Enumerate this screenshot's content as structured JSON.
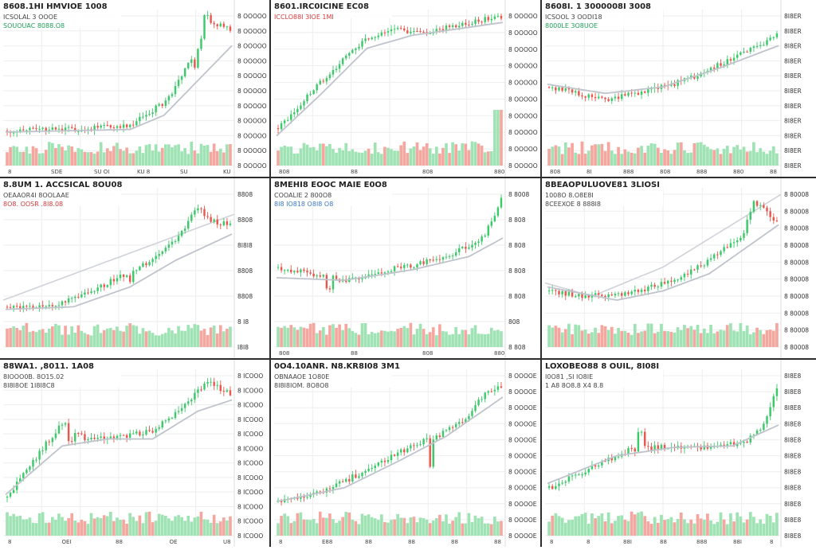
{
  "layout_grid": "3x3",
  "colors": {
    "up": "#3cc96a",
    "down": "#e8584f",
    "up_volume": "#9fe3b4",
    "down_volume": "#f5a79f",
    "ma_line": "#bfc3cc",
    "grid": "#eeeeee",
    "title": "#222222",
    "stat_up": "#1e9e58",
    "stat_down": "#d13c3c",
    "stat_blue": "#3a78c9"
  },
  "chart_data": [
    {
      "type": "candlestick",
      "title": "8608.1HI HMVIOE 1008",
      "stat_lines": [
        "ICSOLAL 3 OOOE",
        "SOUOUAC 8088.O8"
      ],
      "stat_colors": [
        "stat_neutral",
        "stat_up"
      ],
      "y_tick_labels": [
        "8 OOOOO",
        "8 OOOOO",
        "8 OOOOO",
        "8 OOOOO",
        "8 OOOOO",
        "8 OOOOO",
        "8 OOOOO",
        "8 OOOOO",
        "8 OOOOO",
        "8 OOOOO",
        "8 OOOOO"
      ],
      "x_tick_labels": [
        "8",
        "SDE",
        "SU OI",
        "KU 8",
        "SU",
        "KU"
      ],
      "ylim": [
        0,
        100
      ],
      "segments": [
        [
          0,
          6
        ],
        [
          0.3,
          7
        ],
        [
          0.55,
          10
        ],
        [
          0.72,
          30
        ],
        [
          0.85,
          68
        ],
        [
          0.9,
          90
        ],
        [
          1,
          85
        ]
      ],
      "ma_segments": [
        [
          0,
          5
        ],
        [
          0.55,
          7
        ],
        [
          0.7,
          18
        ],
        [
          0.85,
          45
        ],
        [
          1,
          72
        ]
      ],
      "spikes": [
        [
          0.89,
          95
        ],
        [
          0.84,
          55
        ]
      ]
    },
    {
      "type": "candlestick",
      "title": "8601.IRC0ICINE EC08",
      "stat_lines": [
        "ICCLO88I 3IOE 1MI"
      ],
      "stat_colors": [
        "stat_down"
      ],
      "y_tick_labels": [
        "8 OOOOO",
        "8 OOOOO",
        "8 OOOOO",
        "8 OOOOO",
        "8 OOOOO",
        "8 OOOOO",
        "8 OOOOO",
        "8 OOOOO",
        "8 OOOOO",
        "8 OOOOO"
      ],
      "x_tick_labels": [
        "808",
        "88",
        "808",
        "880"
      ],
      "ylim": [
        0,
        100
      ],
      "segments": [
        [
          0,
          8
        ],
        [
          0.2,
          45
        ],
        [
          0.35,
          72
        ],
        [
          0.5,
          85
        ],
        [
          0.65,
          82
        ],
        [
          0.8,
          88
        ],
        [
          1,
          95
        ]
      ],
      "ma_segments": [
        [
          0,
          2
        ],
        [
          0.2,
          35
        ],
        [
          0.4,
          70
        ],
        [
          0.6,
          80
        ],
        [
          1,
          90
        ]
      ],
      "spikes": [],
      "volume_spike": 0.985
    },
    {
      "type": "candlestick",
      "title": "8608I. 1 3000008I 3008",
      "stat_lines": [
        "ICSOOL 3 OODI18",
        "8000LE 3O8UOE"
      ],
      "stat_colors": [
        "stat_neutral",
        "stat_up"
      ],
      "y_tick_labels": [
        "8I8ER",
        "8I8ER",
        "8I8ER",
        "8I8ER",
        "8I8ER",
        "8I8ER",
        "8I8ER",
        "8I8ER",
        "8I8ER",
        "8I8ER",
        "8I8ER"
      ],
      "x_tick_labels": [
        "808",
        "8I",
        "888",
        "808",
        "888",
        "880",
        "88"
      ],
      "ylim": [
        0,
        100
      ],
      "segments": [
        [
          0,
          40
        ],
        [
          0.25,
          30
        ],
        [
          0.45,
          38
        ],
        [
          0.6,
          45
        ],
        [
          0.75,
          58
        ],
        [
          0.88,
          68
        ],
        [
          1,
          80
        ]
      ],
      "ma_segments": [
        [
          0,
          42
        ],
        [
          0.25,
          35
        ],
        [
          0.5,
          40
        ],
        [
          0.75,
          55
        ],
        [
          1,
          72
        ]
      ],
      "spikes": []
    },
    {
      "type": "candlestick",
      "title": "8.8UM 1. ACCSICAL 8OU08",
      "stat_lines": [
        "OEAAOR4I 8OOLAAE",
        "8O8. OOSR .8I8.08"
      ],
      "stat_colors": [
        "stat_neutral",
        "stat_down"
      ],
      "y_tick_labels": [
        "8808",
        "8808",
        "8I8I8",
        "8808",
        "8808",
        "8 I8",
        "I8I8"
      ],
      "x_tick_labels": [],
      "ylim": [
        0,
        100
      ],
      "segments": [
        [
          0,
          10
        ],
        [
          0.2,
          10
        ],
        [
          0.35,
          20
        ],
        [
          0.5,
          32
        ],
        [
          0.65,
          45
        ],
        [
          0.78,
          65
        ],
        [
          0.85,
          85
        ],
        [
          0.92,
          75
        ],
        [
          1,
          72
        ]
      ],
      "ma_segments": [
        [
          0,
          8
        ],
        [
          0.3,
          10
        ],
        [
          0.55,
          25
        ],
        [
          0.75,
          45
        ],
        [
          1,
          65
        ]
      ],
      "trend_segments": [
        [
          0,
          15
        ],
        [
          1,
          80
        ]
      ],
      "spikes": [
        [
          0.55,
          30
        ]
      ]
    },
    {
      "type": "candlestick",
      "title": "8MEHI8 EOOC MAIE E0O8",
      "stat_lines": [
        "COOALIE 2 800O8",
        "8I8 IO818 O8I8 O8"
      ],
      "stat_colors": [
        "stat_neutral",
        "stat_blue"
      ],
      "y_tick_labels": [
        "8 8008",
        "8 808",
        "8 808",
        "8 808",
        "8 808",
        "808",
        "8 808"
      ],
      "x_tick_labels": [
        "808",
        "88",
        "808",
        "880"
      ],
      "ylim": [
        0,
        100
      ],
      "segments": [
        [
          0,
          40
        ],
        [
          0.15,
          35
        ],
        [
          0.3,
          30
        ],
        [
          0.5,
          38
        ],
        [
          0.7,
          45
        ],
        [
          0.85,
          55
        ],
        [
          0.93,
          65
        ],
        [
          1,
          92
        ]
      ],
      "ma_segments": [
        [
          0,
          32
        ],
        [
          0.3,
          30
        ],
        [
          0.6,
          38
        ],
        [
          0.85,
          48
        ],
        [
          1,
          62
        ]
      ],
      "spikes": [
        [
          0.22,
          22
        ]
      ]
    },
    {
      "type": "candlestick",
      "title": "8BEAOPULUOVE81 3LIOSI",
      "stat_lines": [
        "1008O 8.O8E8I",
        "8CEEXOE 8 888I8"
      ],
      "stat_colors": [
        "stat_neutral",
        "stat_neutral"
      ],
      "y_tick_labels": [
        "8 80008",
        "8 80008",
        "8 80008",
        "8 80008",
        "8 80008",
        "8 80008",
        "8 80008",
        "8 80008",
        "8 80008",
        "8 80008"
      ],
      "x_tick_labels": [],
      "ylim": [
        0,
        100
      ],
      "segments": [
        [
          0,
          22
        ],
        [
          0.15,
          18
        ],
        [
          0.35,
          20
        ],
        [
          0.55,
          30
        ],
        [
          0.7,
          45
        ],
        [
          0.85,
          65
        ],
        [
          0.9,
          90
        ],
        [
          1,
          75
        ]
      ],
      "ma_segments": [
        [
          0,
          25
        ],
        [
          0.3,
          15
        ],
        [
          0.5,
          22
        ],
        [
          0.7,
          35
        ],
        [
          1,
          72
        ]
      ],
      "trend_segments": [
        [
          0,
          28
        ],
        [
          0.2,
          18
        ],
        [
          0.5,
          40
        ],
        [
          1,
          95
        ]
      ],
      "spikes": []
    },
    {
      "type": "candlestick",
      "title": "88WA1. ,8011. 1A08",
      "stat_lines": [
        "8IOOO0B. 8O15.02",
        "8I8I8OE 1I8I8C8"
      ],
      "stat_colors": [
        "stat_neutral",
        "stat_neutral"
      ],
      "y_tick_labels": [
        "8 ICOOO",
        "8 ICOOO",
        "8 ICOOO",
        "8 ICOOO",
        "8 ICOOO",
        "8 ICOOO",
        "8 ICOOO",
        "8 ICOOO",
        "8 ICOOO",
        "8 ICOOO",
        "8 ICOOO",
        "8 ICOOO"
      ],
      "x_tick_labels": [
        "8",
        "OEI",
        "88",
        "OE",
        "U8"
      ],
      "ylim": [
        0,
        100
      ],
      "segments": [
        [
          0,
          8
        ],
        [
          0.12,
          35
        ],
        [
          0.25,
          62
        ],
        [
          0.35,
          50
        ],
        [
          0.5,
          52
        ],
        [
          0.65,
          55
        ],
        [
          0.8,
          75
        ],
        [
          0.9,
          92
        ],
        [
          1,
          82
        ]
      ],
      "ma_segments": [
        [
          0,
          10
        ],
        [
          0.25,
          45
        ],
        [
          0.45,
          50
        ],
        [
          0.65,
          50
        ],
        [
          0.85,
          70
        ],
        [
          1,
          78
        ]
      ],
      "spikes": [
        [
          0.28,
          48
        ]
      ]
    },
    {
      "type": "candlestick",
      "title": "0O4.10ANR. N8.KR8I08 3M1",
      "stat_lines": [
        "OBNAAOE 1O80E",
        "8I8I8IOM. 8O8O8"
      ],
      "stat_colors": [
        "stat_neutral",
        "stat_neutral"
      ],
      "y_tick_labels": [
        "8 OOOOE",
        "8 OOOOE",
        "8 OOOOE",
        "8 OOOOE",
        "8 OOOOE",
        "8 OOOOE",
        "8 OOOOE",
        "8 OOOOE",
        "8 OOOOE",
        "8 OOOOE",
        "8 OOOOE"
      ],
      "x_tick_labels": [
        "8",
        "E88",
        "88",
        "88",
        "88",
        "88"
      ],
      "ylim": [
        0,
        100
      ],
      "segments": [
        [
          0,
          5
        ],
        [
          0.2,
          12
        ],
        [
          0.4,
          28
        ],
        [
          0.6,
          45
        ],
        [
          0.75,
          55
        ],
        [
          0.85,
          65
        ],
        [
          0.92,
          82
        ],
        [
          1,
          88
        ]
      ],
      "ma_segments": [
        [
          0,
          5
        ],
        [
          0.3,
          15
        ],
        [
          0.55,
          35
        ],
        [
          0.75,
          52
        ],
        [
          1,
          80
        ]
      ],
      "spikes": [
        [
          0.68,
          30
        ]
      ]
    },
    {
      "type": "candlestick",
      "title": "LOXOBEO88 8 OUIL, 8I08I",
      "stat_lines": [
        "I0O81 ,SI IO8IE",
        "1 A8 8O8.8 X4 8.8"
      ],
      "stat_colors": [
        "stat_neutral",
        "stat_neutral"
      ],
      "y_tick_labels": [
        "8I8E8",
        "8I8E8",
        "8I8E8",
        "8I8E8",
        "8I8E8",
        "8I8E8",
        "8I8E8",
        "8I8E8",
        "8I8E8",
        "8I8E8",
        "8I8E8"
      ],
      "x_tick_labels": [
        "8",
        "8",
        "88I",
        "88",
        "888",
        "88I",
        "8"
      ],
      "ylim": [
        0,
        100
      ],
      "segments": [
        [
          0,
          15
        ],
        [
          0.2,
          30
        ],
        [
          0.35,
          42
        ],
        [
          0.55,
          45
        ],
        [
          0.75,
          44
        ],
        [
          0.88,
          50
        ],
        [
          0.95,
          62
        ],
        [
          1,
          88
        ]
      ],
      "ma_segments": [
        [
          0,
          18
        ],
        [
          0.3,
          38
        ],
        [
          0.55,
          44
        ],
        [
          0.8,
          45
        ],
        [
          1,
          60
        ]
      ],
      "spikes": [
        [
          0.4,
          55
        ]
      ]
    }
  ]
}
